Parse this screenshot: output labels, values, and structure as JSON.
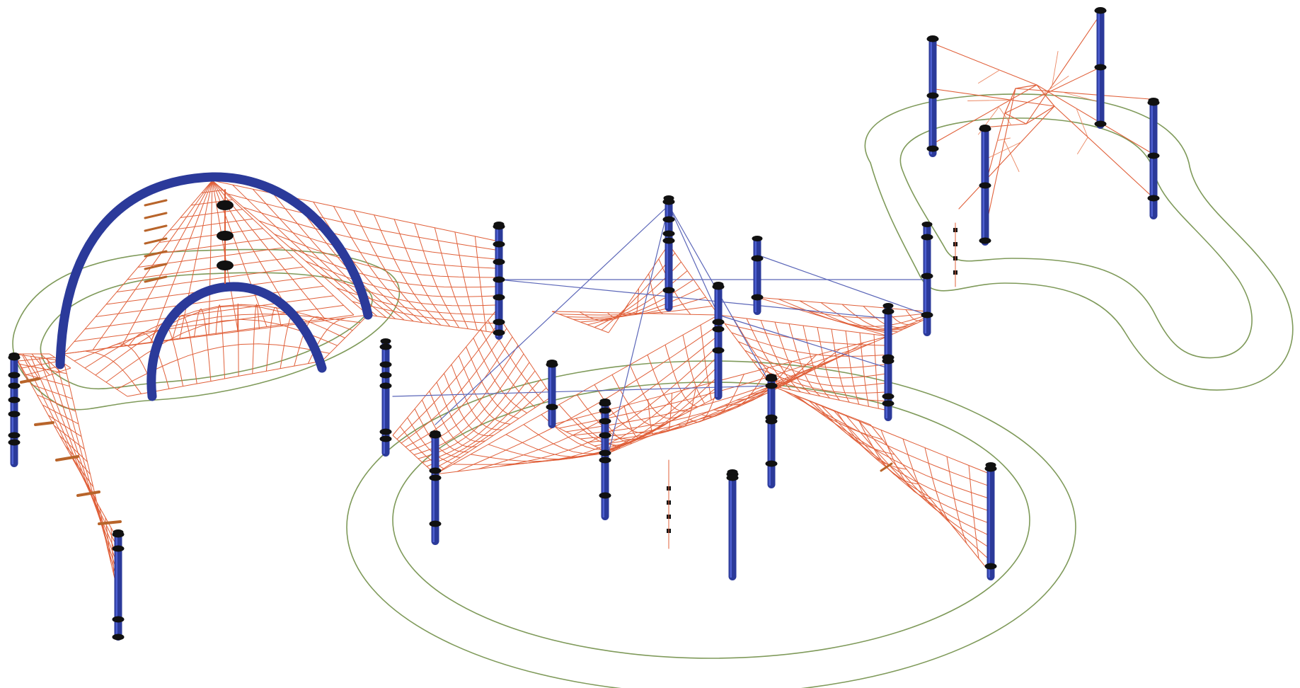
{
  "drawing": {
    "description_text": "",
    "colors": {
      "post": "#2b3a9a",
      "post_highlight": "#4d5fd0",
      "collar": "#111111",
      "net": "#e0603a",
      "net_light": "#ec8a66",
      "cable": "#5b66b8",
      "boundary": "#7f9a5a",
      "rung": "#b8642a",
      "background": "#ffffff"
    },
    "icons": [
      "climbing-post-icon",
      "rope-net-icon",
      "arch-tube-icon",
      "safety-zone-outline-icon"
    ]
  }
}
